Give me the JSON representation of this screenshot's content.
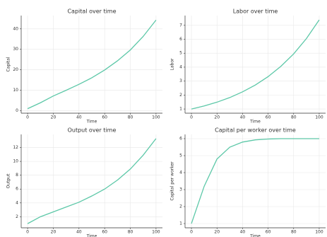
{
  "chart_data": [
    {
      "type": "line",
      "title": "Capital over time",
      "xlabel": "Time",
      "ylabel": "Capital",
      "x": [
        0,
        10,
        20,
        30,
        40,
        50,
        60,
        70,
        80,
        90,
        100
      ],
      "series": [
        {
          "color": "#5dc8a8",
          "values": [
            1,
            3.9,
            7.2,
            10.0,
            12.9,
            16.1,
            19.9,
            24.4,
            29.7,
            36.3,
            44.3
          ]
        }
      ],
      "xlim": [
        -5,
        105
      ],
      "xticks": [
        0,
        20,
        40,
        60,
        80,
        100
      ],
      "ylim": [
        -1.2,
        46.5
      ],
      "yticks": [
        0,
        10,
        20,
        30,
        40
      ],
      "grid": true
    },
    {
      "type": "line",
      "title": "Labor over time",
      "xlabel": "Time",
      "ylabel": "Labor",
      "x": [
        0,
        10,
        20,
        30,
        40,
        50,
        60,
        70,
        80,
        90,
        100
      ],
      "series": [
        {
          "color": "#5dc8a8",
          "values": [
            1,
            1.22,
            1.49,
            1.82,
            2.23,
            2.72,
            3.32,
            4.06,
            4.95,
            6.05,
            7.39
          ]
        }
      ],
      "xlim": [
        -5,
        105
      ],
      "xticks": [
        0,
        20,
        40,
        60,
        80,
        100
      ],
      "ylim": [
        0.7,
        7.7
      ],
      "yticks": [
        1,
        2,
        3,
        4,
        5,
        6,
        7
      ],
      "grid": true
    },
    {
      "type": "line",
      "title": "Output over time",
      "xlabel": "Time",
      "ylabel": "Output",
      "x": [
        0,
        10,
        20,
        30,
        40,
        50,
        60,
        70,
        80,
        90,
        100
      ],
      "series": [
        {
          "color": "#5dc8a8",
          "values": [
            1,
            2.0,
            2.7,
            3.4,
            4.1,
            5.0,
            6.0,
            7.3,
            8.9,
            10.9,
            13.3
          ]
        }
      ],
      "xlim": [
        -5,
        105
      ],
      "xticks": [
        0,
        20,
        40,
        60,
        80,
        100
      ],
      "ylim": [
        0.4,
        13.9
      ],
      "yticks": [
        2,
        4,
        6,
        8,
        10,
        12
      ],
      "grid": true
    },
    {
      "type": "line",
      "title": "Capital per worker over time",
      "xlabel": "Time",
      "ylabel": "Capital per worker",
      "x": [
        0,
        10,
        20,
        30,
        40,
        50,
        60,
        70,
        80,
        90,
        100
      ],
      "series": [
        {
          "color": "#5dc8a8",
          "values": [
            1,
            3.2,
            4.8,
            5.5,
            5.8,
            5.93,
            5.98,
            6.0,
            6.0,
            6.0,
            6.0
          ]
        }
      ],
      "xlim": [
        -5,
        105
      ],
      "xticks": [
        0,
        20,
        40,
        60,
        80,
        100
      ],
      "ylim": [
        0.75,
        6.25
      ],
      "yticks": [
        1,
        2,
        3,
        4,
        5,
        6
      ],
      "grid": true
    }
  ]
}
